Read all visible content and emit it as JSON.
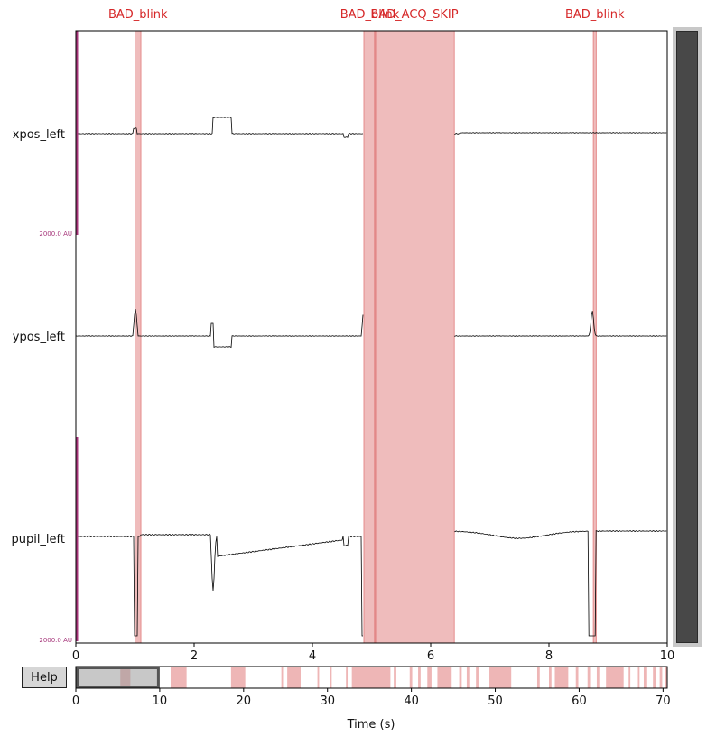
{
  "chart_data": {
    "type": "line",
    "title": "",
    "xlabel": "",
    "ylabel": "",
    "xlim": [
      0,
      10
    ],
    "x_ticks": [
      "0",
      "2",
      "4",
      "6",
      "8",
      "10"
    ],
    "channels": [
      "xpos_left",
      "ypos_left",
      "pupil_left"
    ],
    "scale_labels": [
      "2000.0 AU",
      "2000.0 AU"
    ],
    "trace_color": "#000000",
    "annotation_color": "#e07a7a",
    "annotation_label_color": "#d62728",
    "scale_bar_color": "#a6357a",
    "annotations": [
      {
        "label": "BAD_blink",
        "onset": 1.0,
        "duration": 0.1
      },
      {
        "label": "BAD_blink",
        "onset": 4.87,
        "duration": 0.2
      },
      {
        "label": "BAD_ACQ_SKIP",
        "onset": 5.05,
        "duration": 1.35
      },
      {
        "label": "BAD_blink",
        "onset": 8.75,
        "duration": 0.05
      }
    ],
    "overview": {
      "xlim": [
        0,
        70.5
      ],
      "x_ticks": [
        "0",
        "10",
        "20",
        "30",
        "40",
        "50",
        "60",
        "70"
      ],
      "xlabel": "Time (s)",
      "view_window": [
        0,
        10
      ],
      "bad_spans": [
        [
          5.3,
          6.5
        ],
        [
          11.3,
          13.2
        ],
        [
          18.5,
          20.2
        ],
        [
          24.5,
          24.7
        ],
        [
          25.2,
          26.8
        ],
        [
          28.8,
          29.0
        ],
        [
          30.3,
          30.5
        ],
        [
          32.2,
          32.4
        ],
        [
          32.9,
          37.5
        ],
        [
          37.9,
          38.2
        ],
        [
          39.8,
          40.1
        ],
        [
          40.8,
          41.1
        ],
        [
          41.9,
          42.4
        ],
        [
          43.1,
          44.8
        ],
        [
          45.7,
          46.0
        ],
        [
          46.6,
          46.9
        ],
        [
          47.7,
          48.0
        ],
        [
          49.3,
          51.9
        ],
        [
          55.0,
          55.3
        ],
        [
          56.4,
          56.7
        ],
        [
          57.1,
          58.7
        ],
        [
          59.6,
          59.9
        ],
        [
          61.0,
          61.3
        ],
        [
          62.1,
          62.4
        ],
        [
          63.2,
          65.3
        ],
        [
          65.9,
          66.1
        ],
        [
          67.0,
          67.2
        ],
        [
          67.7,
          68.0
        ],
        [
          68.8,
          69.1
        ],
        [
          69.6,
          69.9
        ],
        [
          70.2,
          70.5
        ]
      ]
    }
  },
  "help_button": {
    "label": "Help"
  }
}
